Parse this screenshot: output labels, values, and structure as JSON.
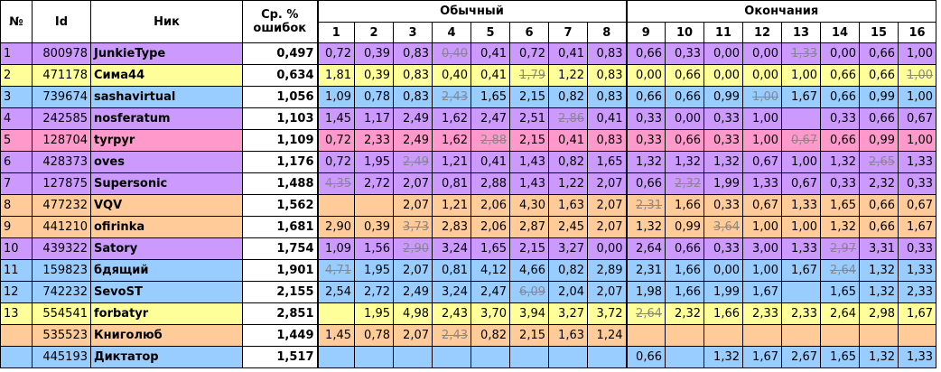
{
  "headers": {
    "num": "№",
    "id": "Id",
    "nick": "Ник",
    "avg_line1": "Ср. %",
    "avg_line2": "ошибок",
    "group_regular": "Обычный",
    "group_endings": "Окончания",
    "cols": [
      "1",
      "2",
      "3",
      "4",
      "5",
      "6",
      "7",
      "8",
      "9",
      "10",
      "11",
      "12",
      "13",
      "14",
      "15",
      "16"
    ]
  },
  "colors": {
    "purple": "#cc99ff",
    "yellow": "#ffff99",
    "blue": "#99ccff",
    "pink": "#ff99cc",
    "orange": "#ffcc99"
  },
  "rows": [
    {
      "num": "1",
      "id": "800978",
      "nick": "JunkieType",
      "avg": "0,497",
      "color": "purple",
      "vals": [
        "0,72",
        "0,39",
        "0,83",
        "0,40",
        "0,41",
        "0,72",
        "0,41",
        "0,83",
        "0,66",
        "0,33",
        "0,00",
        "0,00",
        "1,33",
        "0,00",
        "0,66",
        "1,00"
      ],
      "strike": [
        3,
        12
      ]
    },
    {
      "num": "2",
      "id": "471178",
      "nick": "Сима44",
      "avg": "0,634",
      "color": "yellow",
      "vals": [
        "1,81",
        "0,39",
        "0,83",
        "0,40",
        "0,41",
        "1,79",
        "1,22",
        "0,83",
        "0,00",
        "0,66",
        "0,00",
        "0,00",
        "1,00",
        "0,66",
        "0,66",
        "1,00"
      ],
      "strike": [
        5,
        15
      ]
    },
    {
      "num": "3",
      "id": "739674",
      "nick": "sashavirtual",
      "avg": "1,056",
      "color": "blue",
      "vals": [
        "1,09",
        "0,78",
        "0,83",
        "2,43",
        "1,65",
        "2,15",
        "0,82",
        "0,83",
        "0,66",
        "0,66",
        "0,99",
        "1,00",
        "1,67",
        "0,66",
        "0,99",
        "1,00"
      ],
      "strike": [
        3,
        11
      ]
    },
    {
      "num": "4",
      "id": "242585",
      "nick": "nosferatum",
      "avg": "1,103",
      "color": "purple",
      "vals": [
        "1,45",
        "1,17",
        "2,49",
        "1,62",
        "2,47",
        "2,51",
        "2,86",
        "0,41",
        "0,33",
        "0,00",
        "0,33",
        "1,00",
        "",
        "0,33",
        "0,66",
        "0,67"
      ],
      "strike": [
        6
      ]
    },
    {
      "num": "5",
      "id": "128704",
      "nick": "tyrpyr",
      "avg": "1,109",
      "color": "pink",
      "vals": [
        "0,72",
        "2,33",
        "2,49",
        "1,62",
        "2,88",
        "2,15",
        "0,41",
        "0,83",
        "0,33",
        "0,66",
        "0,33",
        "1,00",
        "0,67",
        "0,66",
        "0,99",
        "1,00"
      ],
      "strike": [
        4,
        12
      ]
    },
    {
      "num": "6",
      "id": "428373",
      "nick": "oves",
      "avg": "1,176",
      "color": "purple",
      "vals": [
        "0,72",
        "1,95",
        "2,49",
        "1,21",
        "0,41",
        "1,43",
        "0,82",
        "1,65",
        "1,32",
        "1,32",
        "1,32",
        "0,67",
        "1,00",
        "1,32",
        "2,65",
        "1,33"
      ],
      "strike": [
        2,
        14
      ]
    },
    {
      "num": "7",
      "id": "127875",
      "nick": "Supersonic",
      "avg": "1,488",
      "color": "purple",
      "vals": [
        "4,35",
        "2,72",
        "2,07",
        "0,81",
        "2,88",
        "1,43",
        "1,22",
        "2,07",
        "0,66",
        "2,32",
        "1,99",
        "1,33",
        "0,67",
        "0,33",
        "2,32",
        "0,33"
      ],
      "strike": [
        0,
        9
      ]
    },
    {
      "num": "8",
      "id": "477232",
      "nick": "VQV",
      "avg": "1,562",
      "color": "orange",
      "vals": [
        "",
        "",
        "2,07",
        "1,21",
        "2,06",
        "4,30",
        "1,63",
        "2,07",
        "2,31",
        "1,66",
        "0,33",
        "0,67",
        "1,33",
        "1,65",
        "0,66",
        "0,67"
      ],
      "strike": [
        8
      ]
    },
    {
      "num": "9",
      "id": "441210",
      "nick": "ofirinka",
      "avg": "1,681",
      "color": "orange",
      "vals": [
        "2,90",
        "0,39",
        "3,73",
        "2,83",
        "2,06",
        "2,87",
        "2,45",
        "2,07",
        "1,32",
        "0,99",
        "3,64",
        "1,00",
        "1,00",
        "1,32",
        "0,66",
        "1,67"
      ],
      "strike": [
        2,
        10
      ]
    },
    {
      "num": "10",
      "id": "439322",
      "nick": "Satory",
      "avg": "1,754",
      "color": "purple",
      "vals": [
        "1,09",
        "1,56",
        "2,90",
        "3,24",
        "1,65",
        "2,15",
        "3,27",
        "0,00",
        "2,64",
        "0,66",
        "0,33",
        "3,00",
        "1,33",
        "2,97",
        "3,31",
        "0,33"
      ],
      "strike": [
        2,
        13
      ]
    },
    {
      "num": "11",
      "id": "159823",
      "nick": "бдящий",
      "avg": "1,901",
      "color": "blue",
      "vals": [
        "4,71",
        "1,95",
        "2,07",
        "0,81",
        "4,12",
        "4,66",
        "0,82",
        "2,89",
        "2,31",
        "1,66",
        "0,00",
        "1,00",
        "1,67",
        "2,64",
        "1,32",
        "1,33"
      ],
      "strike": [
        0,
        13
      ]
    },
    {
      "num": "12",
      "id": "742232",
      "nick": "SevoST",
      "avg": "2,155",
      "color": "blue",
      "vals": [
        "2,54",
        "2,72",
        "2,49",
        "3,24",
        "2,47",
        "6,09",
        "2,04",
        "2,07",
        "1,98",
        "1,66",
        "1,99",
        "1,67",
        "",
        "1,65",
        "1,32",
        "2,33"
      ],
      "strike": [
        5
      ]
    },
    {
      "num": "13",
      "id": "554541",
      "nick": "forbatyr",
      "avg": "2,851",
      "color": "yellow",
      "vals": [
        "",
        "1,95",
        "4,98",
        "2,43",
        "3,70",
        "3,94",
        "3,27",
        "3,72",
        "2,64",
        "2,32",
        "1,66",
        "2,33",
        "2,33",
        "2,64",
        "2,98",
        "1,67"
      ],
      "strike": [
        8
      ]
    },
    {
      "num": "",
      "id": "535523",
      "nick": "Книголюб",
      "avg": "1,449",
      "color": "orange",
      "vals": [
        "1,45",
        "0,78",
        "2,07",
        "2,43",
        "0,82",
        "2,15",
        "1,63",
        "1,24",
        "",
        "",
        "",
        "",
        "",
        "",
        "",
        ""
      ],
      "strike": [
        3
      ]
    },
    {
      "num": "",
      "id": "445193",
      "nick": "Диктатор",
      "avg": "1,517",
      "color": "blue",
      "vals": [
        "",
        "",
        "",
        "",
        "",
        "",
        "",
        "",
        "0,66",
        "",
        "1,32",
        "1,67",
        "2,67",
        "1,65",
        "1,32",
        "1,33"
      ],
      "strike": []
    }
  ]
}
